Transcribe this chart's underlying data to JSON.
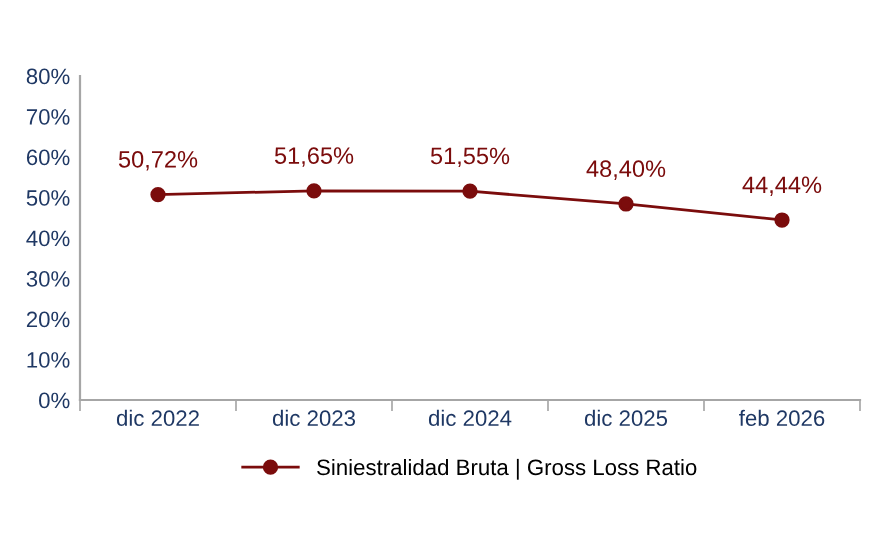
{
  "chart_data": {
    "type": "line",
    "categories": [
      "dic 2022",
      "dic 2023",
      "dic 2024",
      "dic 2025",
      "feb 2026"
    ],
    "series": [
      {
        "name": "Siniestralidad Bruta | Gross Loss Ratio",
        "color": "#7b0c0c",
        "values": [
          50.72,
          51.65,
          51.55,
          48.4,
          44.44
        ],
        "value_labels": [
          "50,72%",
          "51,65%",
          "51,55%",
          "48,40%",
          "44,44%"
        ]
      }
    ],
    "ylim": [
      0,
      80
    ],
    "yticks": [
      {
        "value": 0,
        "label": "0%"
      },
      {
        "value": 10,
        "label": "10%"
      },
      {
        "value": 20,
        "label": "20%"
      },
      {
        "value": 30,
        "label": "30%"
      },
      {
        "value": 40,
        "label": "40%"
      },
      {
        "value": 50,
        "label": "50%"
      },
      {
        "value": 60,
        "label": "60%"
      },
      {
        "value": 70,
        "label": "70%"
      },
      {
        "value": 80,
        "label": "80%"
      }
    ],
    "marker": "circle",
    "line_style": "solid",
    "legend": "bottom",
    "grid": false
  }
}
